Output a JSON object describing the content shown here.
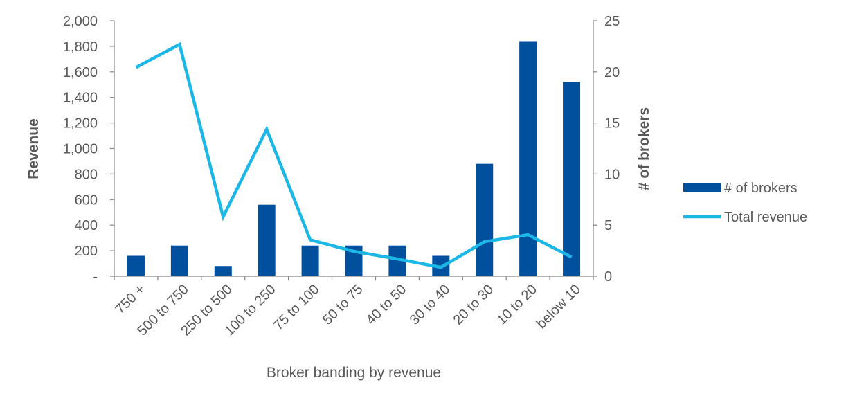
{
  "chart_data": {
    "type": "bar+line",
    "categories": [
      "750 +",
      "500 to 750",
      "250 to 500",
      "100 to 250",
      "75 to 100",
      "50 to 75",
      "40 to 50",
      "30 to 40",
      "20 to 30",
      "10 to 20",
      "below 10"
    ],
    "series": [
      {
        "name": "# of brokers",
        "type": "bar",
        "axis": "right",
        "color": "#00509D",
        "values": [
          2,
          3,
          1,
          7,
          3,
          3,
          3,
          2,
          11,
          23,
          19
        ]
      },
      {
        "name": "Total revenue",
        "type": "line",
        "axis": "left",
        "color": "#1BB7E6",
        "values": [
          1635,
          1815,
          465,
          1150,
          285,
          195,
          135,
          70,
          270,
          325,
          150
        ]
      }
    ],
    "xlabel": "Broker banding by revenue",
    "ylabel": "Revenue",
    "y2label": "# of brokers",
    "ylim": [
      0,
      2000
    ],
    "y2lim": [
      0,
      25
    ],
    "yticks": [
      "-",
      "200",
      "400",
      "600",
      "800",
      "1,000",
      "1,200",
      "1,400",
      "1,600",
      "1,800",
      "2,000"
    ],
    "y2ticks": [
      "0",
      "5",
      "10",
      "15",
      "20",
      "25"
    ],
    "legend": "right",
    "grid": false
  }
}
